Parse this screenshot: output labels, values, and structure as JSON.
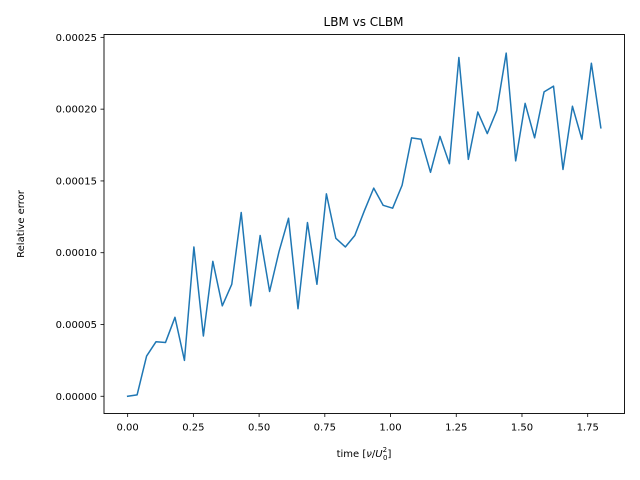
{
  "chart_data": {
    "type": "line",
    "title": "LBM vs CLBM",
    "ylabel": "Relative error",
    "xlabel_prefix": "time [",
    "xlabel_nu": "ν",
    "xlabel_slash": "/",
    "xlabel_U": "U",
    "xlabel_sub": "0",
    "xlabel_sup": "2",
    "xlabel_suffix": "]",
    "xlim": [
      -0.09,
      1.89
    ],
    "ylim": [
      -1.2e-05,
      0.000252
    ],
    "xticks": [
      {
        "value": 0.0,
        "label": "0.00"
      },
      {
        "value": 0.25,
        "label": "0.25"
      },
      {
        "value": 0.5,
        "label": "0.50"
      },
      {
        "value": 0.75,
        "label": "0.75"
      },
      {
        "value": 1.0,
        "label": "1.00"
      },
      {
        "value": 1.25,
        "label": "1.25"
      },
      {
        "value": 1.5,
        "label": "1.50"
      },
      {
        "value": 1.75,
        "label": "1.75"
      }
    ],
    "yticks": [
      {
        "value": 0.0,
        "label": "0.00000"
      },
      {
        "value": 5e-05,
        "label": "0.00005"
      },
      {
        "value": 0.0001,
        "label": "0.00010"
      },
      {
        "value": 0.00015,
        "label": "0.00015"
      },
      {
        "value": 0.0002,
        "label": "0.00020"
      },
      {
        "value": 0.00025,
        "label": "0.00025"
      }
    ],
    "grid": false,
    "series": [
      {
        "color": "#1f77b4",
        "x": [
          0.0,
          0.036,
          0.072,
          0.108,
          0.144,
          0.18,
          0.216,
          0.252,
          0.288,
          0.324,
          0.36,
          0.396,
          0.432,
          0.468,
          0.504,
          0.54,
          0.576,
          0.612,
          0.648,
          0.684,
          0.72,
          0.756,
          0.792,
          0.828,
          0.864,
          0.9,
          0.936,
          0.972,
          1.008,
          1.044,
          1.08,
          1.116,
          1.152,
          1.188,
          1.224,
          1.26,
          1.296,
          1.332,
          1.368,
          1.404,
          1.44,
          1.476,
          1.512,
          1.548,
          1.584,
          1.62,
          1.656,
          1.692,
          1.728,
          1.764,
          1.8
        ],
        "y": [
          0.0,
          1e-06,
          2.8e-05,
          3.8e-05,
          3.75e-05,
          5.5e-05,
          2.5e-05,
          0.000104,
          4.2e-05,
          9.4e-05,
          6.3e-05,
          7.8e-05,
          0.000128,
          6.3e-05,
          0.000112,
          7.3e-05,
          0.000101,
          0.000124,
          6.1e-05,
          0.000121,
          7.8e-05,
          0.000141,
          0.00011,
          0.000104,
          0.000112,
          0.000129,
          0.000145,
          0.000133,
          0.000131,
          0.000147,
          0.00018,
          0.000179,
          0.000156,
          0.000181,
          0.000162,
          0.000236,
          0.000165,
          0.000198,
          0.000183,
          0.000199,
          0.000239,
          0.000164,
          0.000204,
          0.00018,
          0.000212,
          0.000216,
          0.000158,
          0.000202,
          0.000179,
          0.000232,
          0.000187
        ]
      }
    ]
  }
}
